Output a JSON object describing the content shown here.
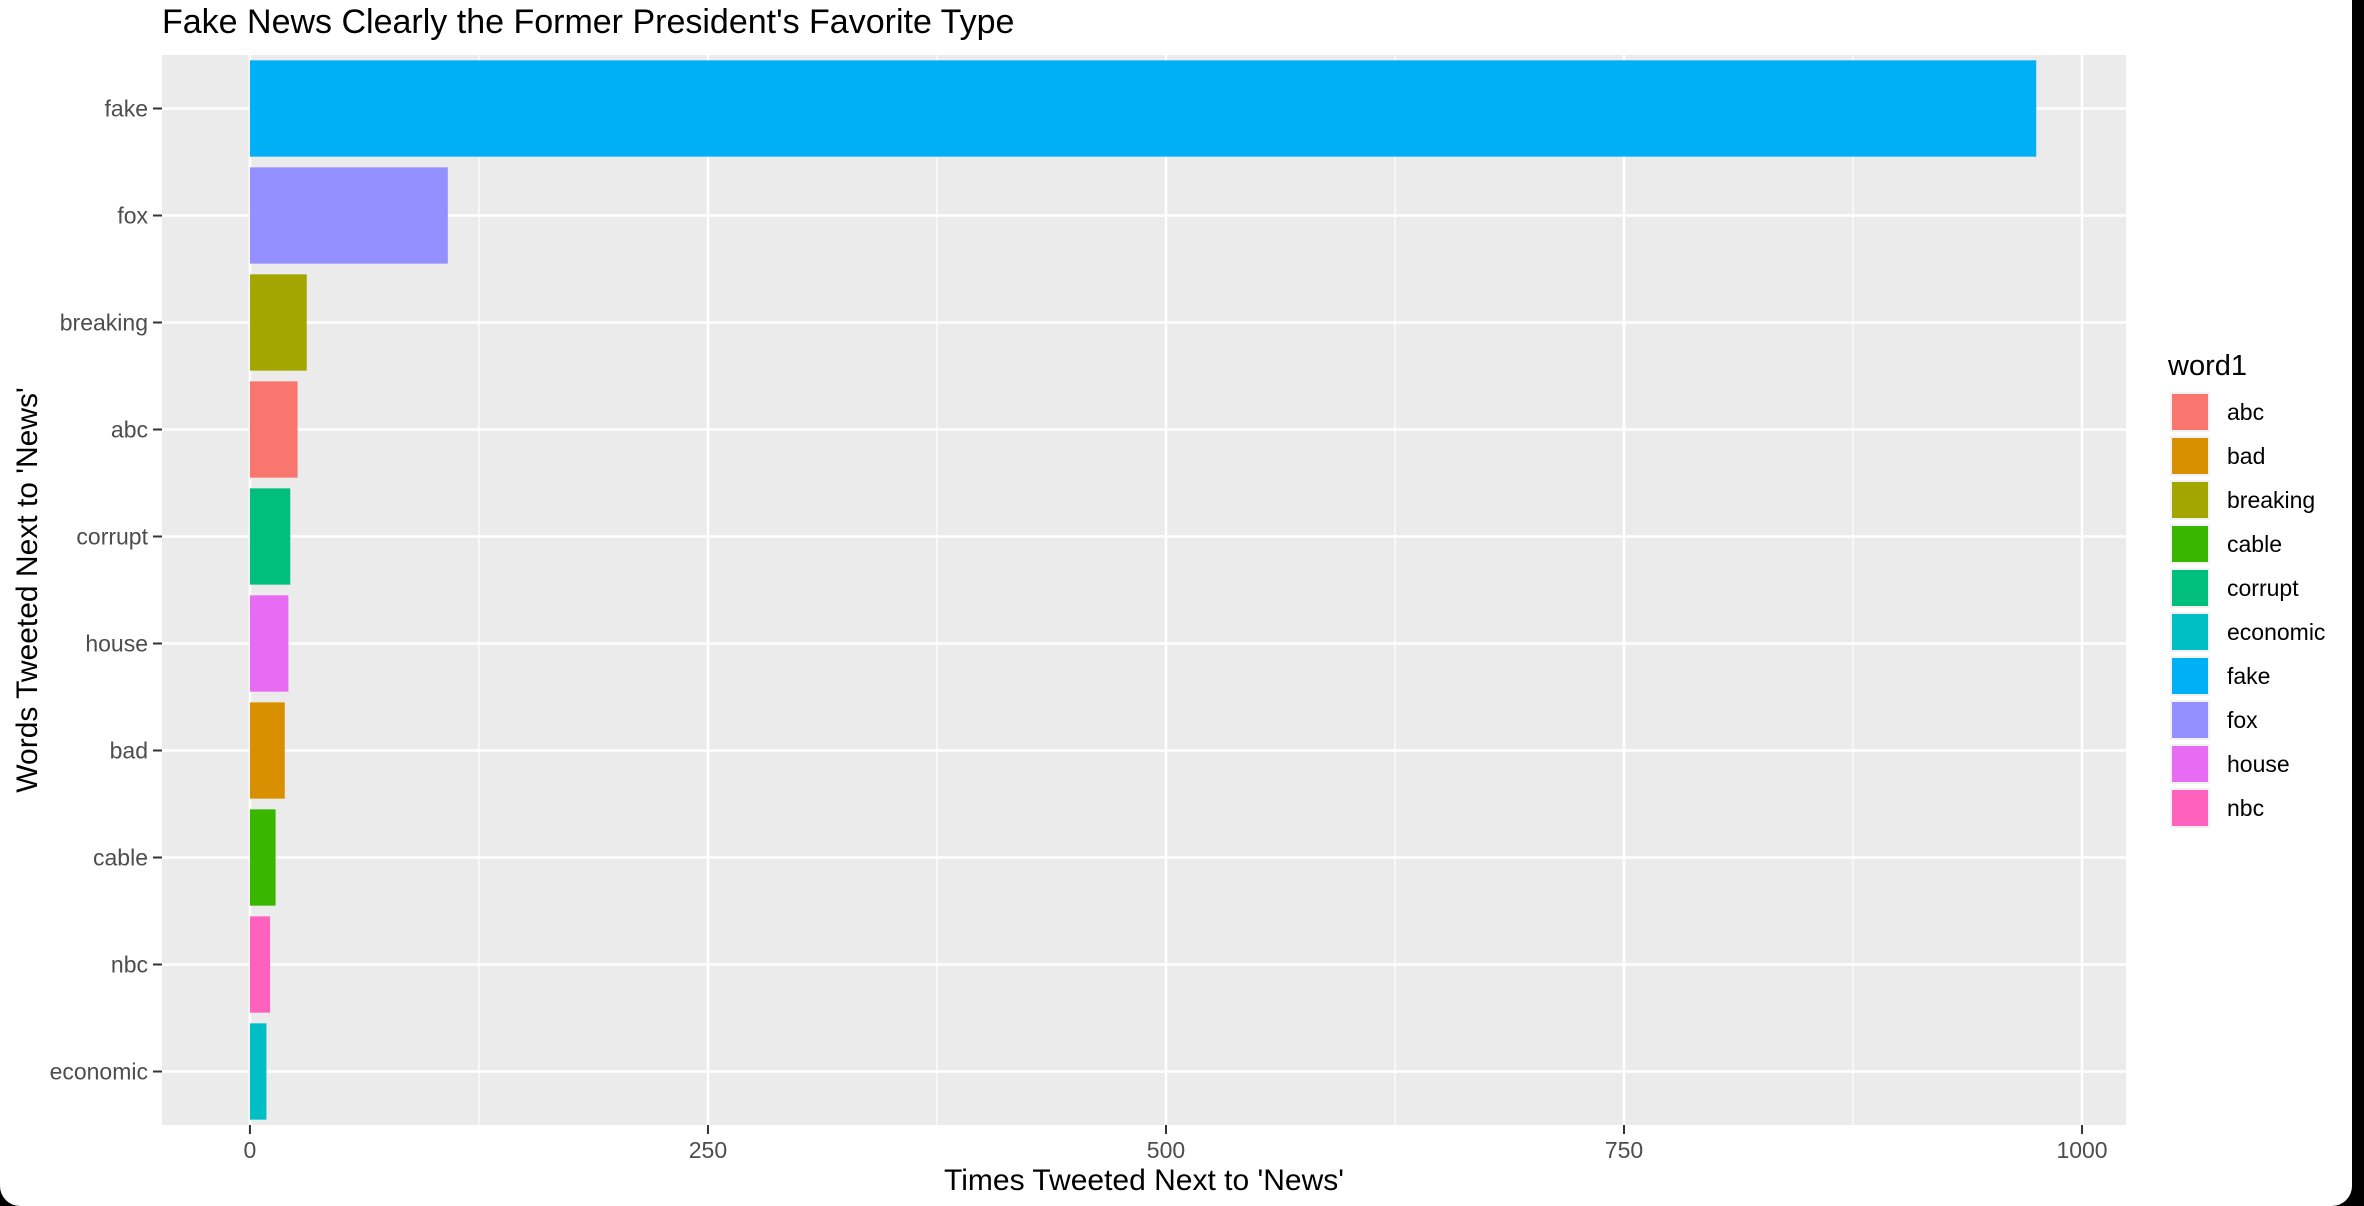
{
  "chart_data": {
    "type": "bar",
    "orientation": "horizontal",
    "title": "Fake News Clearly the Former President's Favorite Type",
    "xlabel": "Times Tweeted Next to 'News'",
    "ylabel": "Words Tweeted Next to 'News'",
    "xlim": [
      -48,
      1024
    ],
    "x_ticks": [
      0,
      250,
      500,
      750,
      1000
    ],
    "x_tick_labels": [
      "0",
      "250",
      "500",
      "750",
      "1000"
    ],
    "categories": [
      "fake",
      "fox",
      "breaking",
      "abc",
      "corrupt",
      "house",
      "bad",
      "cable",
      "nbc",
      "economic"
    ],
    "values": [
      975,
      108,
      31,
      26,
      22,
      21,
      19,
      14,
      11,
      9
    ],
    "colors": {
      "abc": "#F8766D",
      "bad": "#D89000",
      "breaking": "#A3A500",
      "cable": "#39B600",
      "corrupt": "#00BF7D",
      "economic": "#00BFC4",
      "fake": "#00B0F6",
      "fox": "#9590FF",
      "house": "#E76BF3",
      "nbc": "#FF62BC"
    },
    "legend": {
      "title": "word1",
      "position": "right",
      "entries": [
        "abc",
        "bad",
        "breaking",
        "cable",
        "corrupt",
        "economic",
        "fake",
        "fox",
        "house",
        "nbc"
      ]
    },
    "grid": true,
    "panel_background": "#EBEBEB"
  }
}
